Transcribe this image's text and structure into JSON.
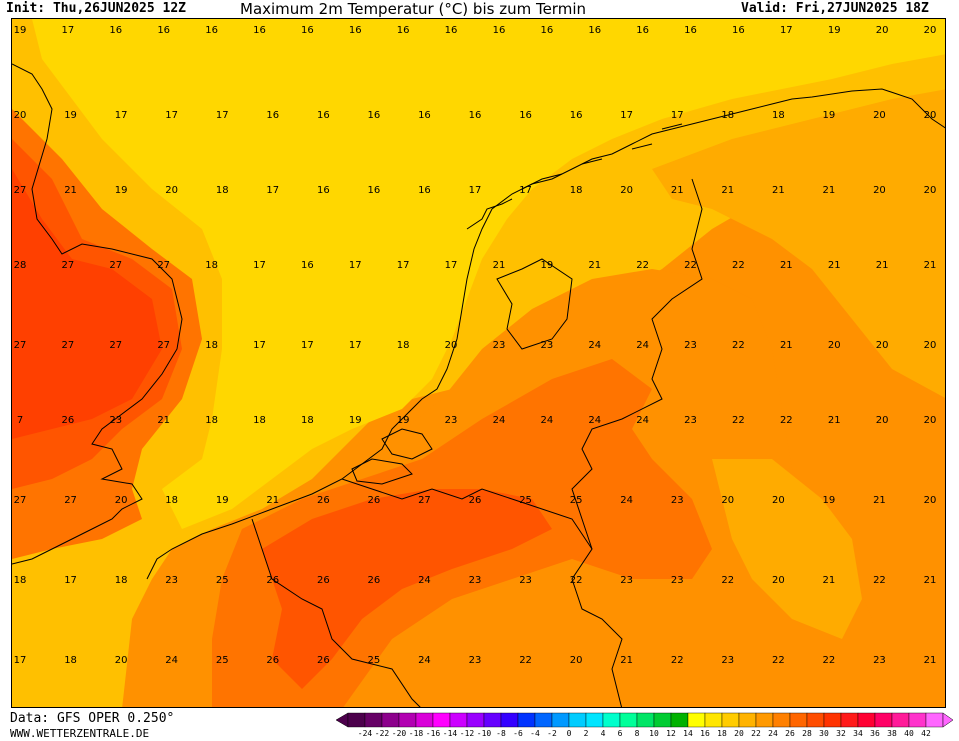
{
  "header": {
    "init": "Init: Thu,26JUN2025 12Z",
    "title": "Maximum 2m Temperatur (°C) bis zum Termin",
    "valid": "Valid: Fri,27JUN2025 18Z"
  },
  "footer": {
    "data_source": "Data: GFS OPER 0.250°",
    "website": "WWW.WETTERZENTRALE.DE"
  },
  "colorbar": {
    "ticks": [
      "-24",
      "-22",
      "-20",
      "-18",
      "-16",
      "-14",
      "-12",
      "-10",
      "-8",
      "-6",
      "-4",
      "-2",
      "0",
      "2",
      "4",
      "6",
      "8",
      "10",
      "12",
      "14",
      "16",
      "18",
      "20",
      "22",
      "24",
      "26",
      "28",
      "30",
      "32",
      "34",
      "36",
      "38",
      "40",
      "42"
    ],
    "colors": [
      "#4c004c",
      "#660066",
      "#8c008c",
      "#b200b2",
      "#d900d9",
      "#ff00ff",
      "#cc00ff",
      "#9900ff",
      "#6600ff",
      "#3300ff",
      "#0033ff",
      "#0066ff",
      "#0099ff",
      "#00ccff",
      "#00e5ff",
      "#00ffcc",
      "#00ff99",
      "#00e566",
      "#00cc33",
      "#00b200",
      "#ffff00",
      "#ffe600",
      "#ffcc00",
      "#ffb300",
      "#ff9900",
      "#ff8000",
      "#ff6600",
      "#ff4d00",
      "#ff3300",
      "#ff1a1a",
      "#ff0033",
      "#ff0066",
      "#ff1a99",
      "#ff33cc",
      "#ff66ff"
    ]
  },
  "map": {
    "colors": {
      "t16": "#ffd700",
      "t18": "#ffc000",
      "t20": "#ffab00",
      "t22": "#ff9100",
      "t24": "#ff7400",
      "t26": "#ff5500",
      "t28": "#ff4000"
    },
    "values": [
      [
        "19",
        "17",
        "16",
        "16",
        "16",
        "16",
        "16",
        "16",
        "16",
        "16",
        "16",
        "16",
        "16",
        "16",
        "16",
        "16",
        "17",
        "19",
        "20",
        "20"
      ],
      [
        "20",
        "19",
        "17",
        "17",
        "17",
        "16",
        "16",
        "16",
        "16",
        "16",
        "16",
        "16",
        "17",
        "17",
        "18",
        "18",
        "19",
        "20",
        "20"
      ],
      [
        "27",
        "21",
        "19",
        "20",
        "18",
        "17",
        "16",
        "16",
        "16",
        "17",
        "17",
        "18",
        "20",
        "21",
        "21",
        "21",
        "21",
        "20",
        "20"
      ],
      [
        "28",
        "27",
        "27",
        "27",
        "18",
        "17",
        "16",
        "17",
        "17",
        "17",
        "21",
        "19",
        "21",
        "22",
        "22",
        "22",
        "21",
        "21",
        "21",
        "21"
      ],
      [
        "27",
        "27",
        "27",
        "27",
        "18",
        "17",
        "17",
        "17",
        "18",
        "20",
        "23",
        "23",
        "24",
        "24",
        "23",
        "22",
        "21",
        "20",
        "20",
        "20"
      ],
      [
        "7",
        "26",
        "23",
        "21",
        "18",
        "18",
        "18",
        "19",
        "19",
        "23",
        "24",
        "24",
        "24",
        "24",
        "23",
        "22",
        "22",
        "21",
        "20",
        "20"
      ],
      [
        "27",
        "27",
        "20",
        "18",
        "19",
        "21",
        "26",
        "26",
        "27",
        "26",
        "25",
        "25",
        "24",
        "23",
        "20",
        "20",
        "19",
        "21",
        "20"
      ],
      [
        "18",
        "17",
        "18",
        "23",
        "25",
        "26",
        "26",
        "26",
        "24",
        "23",
        "23",
        "22",
        "23",
        "23",
        "22",
        "20",
        "21",
        "22",
        "21"
      ],
      [
        "17",
        "18",
        "20",
        "24",
        "25",
        "26",
        "26",
        "25",
        "24",
        "23",
        "22",
        "20",
        "21",
        "22",
        "23",
        "22",
        "22",
        "23",
        "21"
      ]
    ]
  }
}
